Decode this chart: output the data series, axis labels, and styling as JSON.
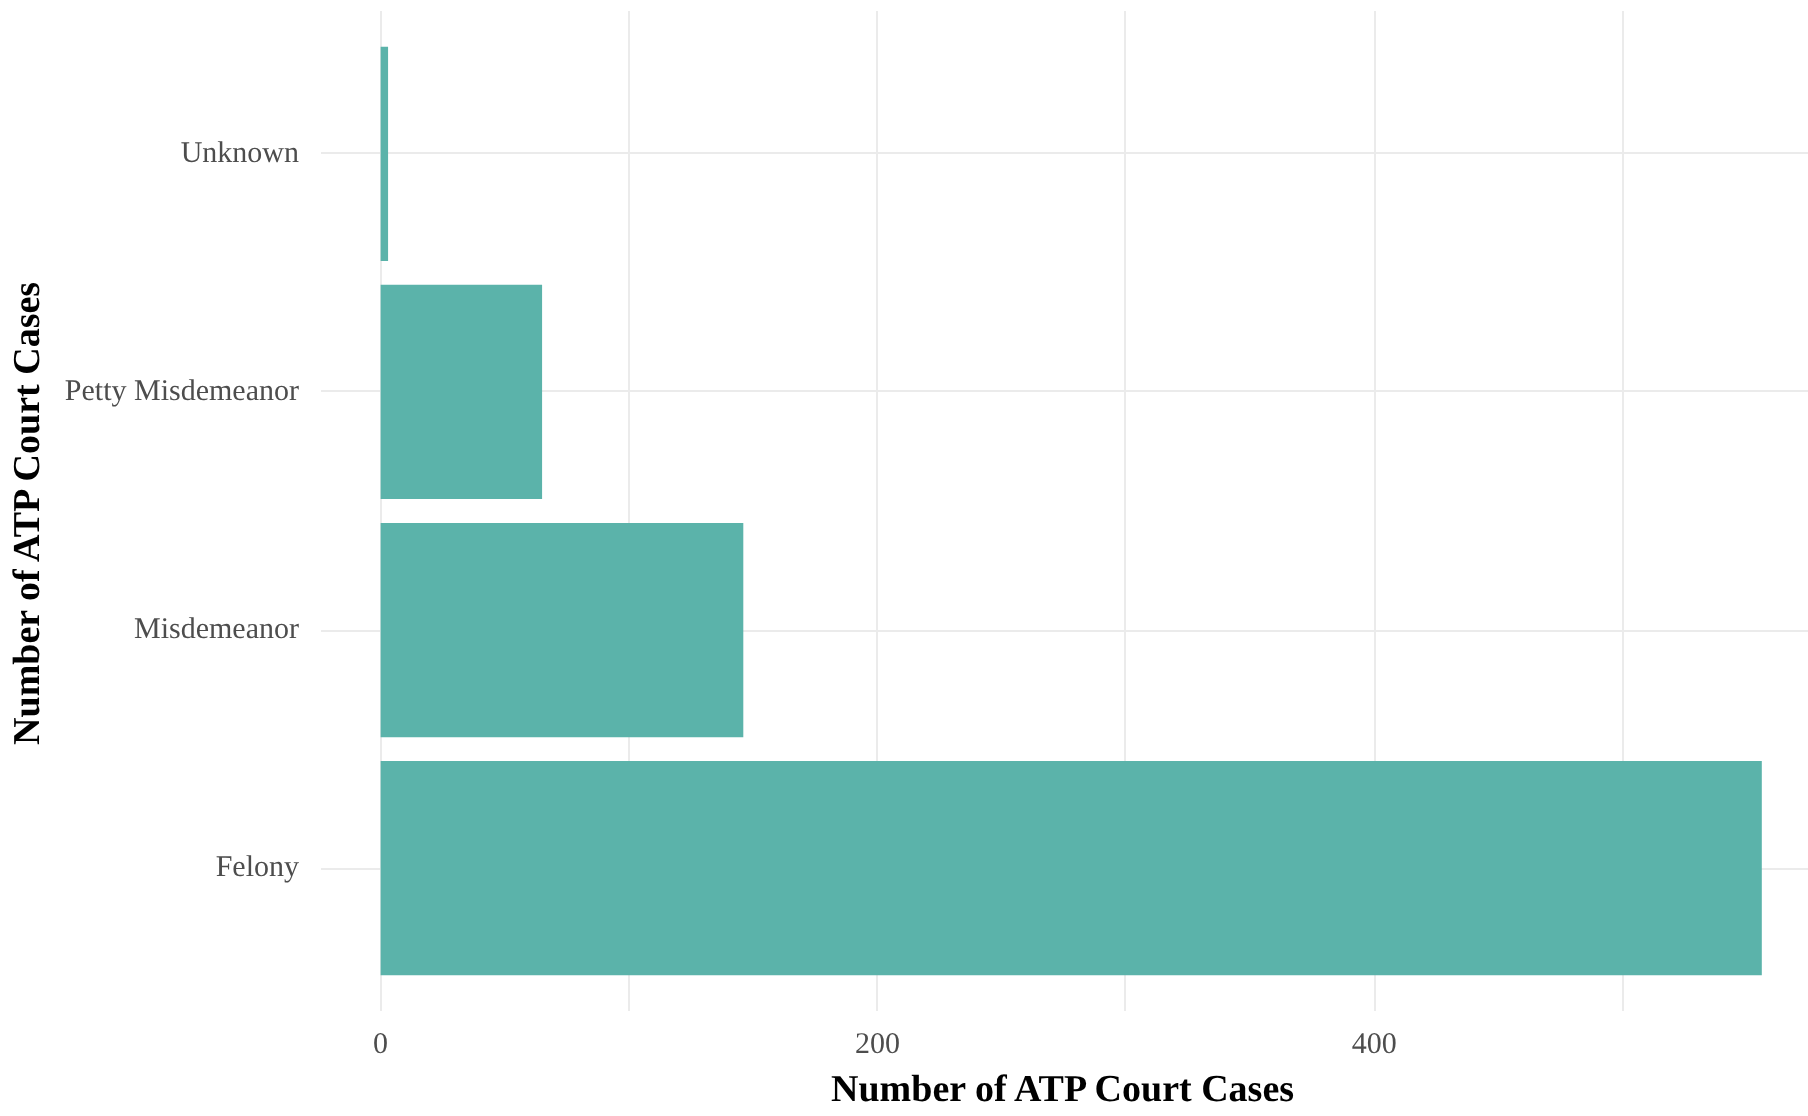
{
  "chart_data": {
    "type": "bar",
    "orientation": "horizontal",
    "xlabel": "Number of ATP Court Cases",
    "ylabel": "Number of ATP Court Cases",
    "categories": [
      "Unknown",
      "Petty Misdemeanor",
      "Misdemeanor",
      "Felony"
    ],
    "values": [
      3,
      65,
      146,
      556
    ],
    "color": "#5bb3aa",
    "xlim": [
      -24,
      575
    ],
    "xticks": [
      0,
      {
        "value": 100,
        "label": null
      },
      200,
      {
        "value": 300,
        "label": null
      },
      400,
      {
        "value": 500,
        "label": null
      }
    ],
    "grid": true
  }
}
